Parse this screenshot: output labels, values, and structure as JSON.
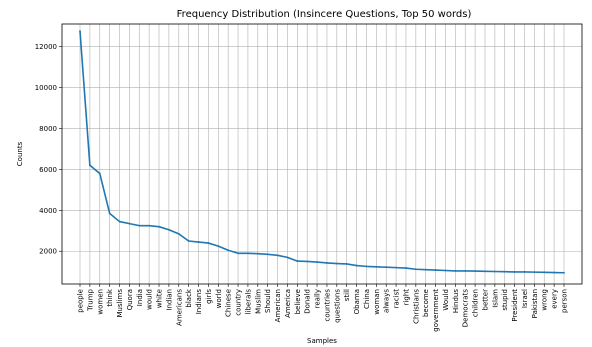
{
  "chart_data": {
    "type": "line",
    "title": "Frequency Distribution (Insincere Questions, Top 50 words)",
    "xlabel": "Samples",
    "ylabel": "Counts",
    "ylim": [
      400,
      13100
    ],
    "yticks": [
      2000,
      4000,
      6000,
      8000,
      10000,
      12000
    ],
    "grid": true,
    "color": "#1f77b4",
    "categories": [
      "people",
      "Trump",
      "women",
      "think",
      "Muslims",
      "Quora",
      "India",
      "would",
      "white",
      "Indian",
      "Americans",
      "black",
      "Indians",
      "girls",
      "world",
      "Chinese",
      "country",
      "liberals",
      "Muslim",
      "Should",
      "American",
      "America",
      "believe",
      "Donald",
      "really",
      "countries",
      "questions",
      "still",
      "Obama",
      "China",
      "woman",
      "always",
      "racist",
      "right",
      "Christians",
      "become",
      "government",
      "Would",
      "Hindus",
      "Democrats",
      "children",
      "better",
      "Islam",
      "stupid",
      "President",
      "Israel",
      "Pakistan",
      "wrong",
      "every",
      "person"
    ],
    "values": [
      12750,
      6200,
      5800,
      3850,
      3450,
      3350,
      3250,
      3250,
      3200,
      3050,
      2850,
      2500,
      2450,
      2400,
      2250,
      2050,
      1900,
      1900,
      1880,
      1850,
      1800,
      1700,
      1520,
      1500,
      1470,
      1430,
      1400,
      1380,
      1300,
      1260,
      1240,
      1220,
      1200,
      1180,
      1120,
      1100,
      1080,
      1060,
      1040,
      1040,
      1030,
      1020,
      1010,
      1000,
      990,
      990,
      980,
      970,
      960,
      950
    ]
  }
}
